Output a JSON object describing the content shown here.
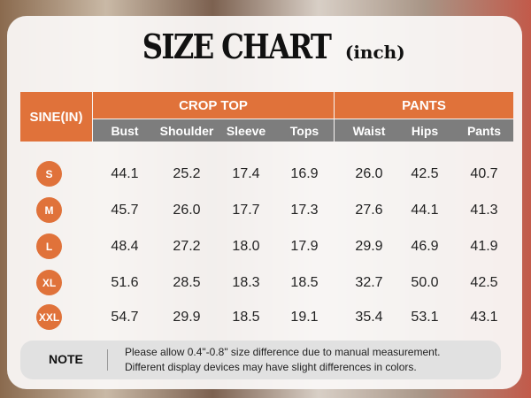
{
  "title": {
    "main": "SIZE CHART",
    "unit": "(inch)"
  },
  "header": {
    "size_col": "SINE(IN)",
    "groups": [
      "CROP TOP",
      "PANTS"
    ],
    "columns": [
      "Bust",
      "Shoulder",
      "Sleeve",
      "Tops",
      "Waist",
      "Hips",
      "Pants"
    ]
  },
  "rows": [
    {
      "size": "S",
      "values": [
        "44.1",
        "25.2",
        "17.4",
        "16.9",
        "26.0",
        "42.5",
        "40.7"
      ]
    },
    {
      "size": "M",
      "values": [
        "45.7",
        "26.0",
        "17.7",
        "17.3",
        "27.6",
        "44.1",
        "41.3"
      ]
    },
    {
      "size": "L",
      "values": [
        "48.4",
        "27.2",
        "18.0",
        "17.9",
        "29.9",
        "46.9",
        "41.9"
      ]
    },
    {
      "size": "XL",
      "values": [
        "51.6",
        "28.5",
        "18.3",
        "18.5",
        "32.7",
        "50.0",
        "42.5"
      ]
    },
    {
      "size": "XXL",
      "values": [
        "54.7",
        "29.9",
        "18.5",
        "19.1",
        "35.4",
        "53.1",
        "43.1"
      ]
    }
  ],
  "note": {
    "label": "NOTE",
    "lines": [
      "Please allow 0.4\"-0.8\" size difference due to manual measurement.",
      "Different display devices may have slight differences in colors."
    ]
  },
  "colors": {
    "accent": "#e0723a",
    "subheader": "#7d7d7d"
  }
}
